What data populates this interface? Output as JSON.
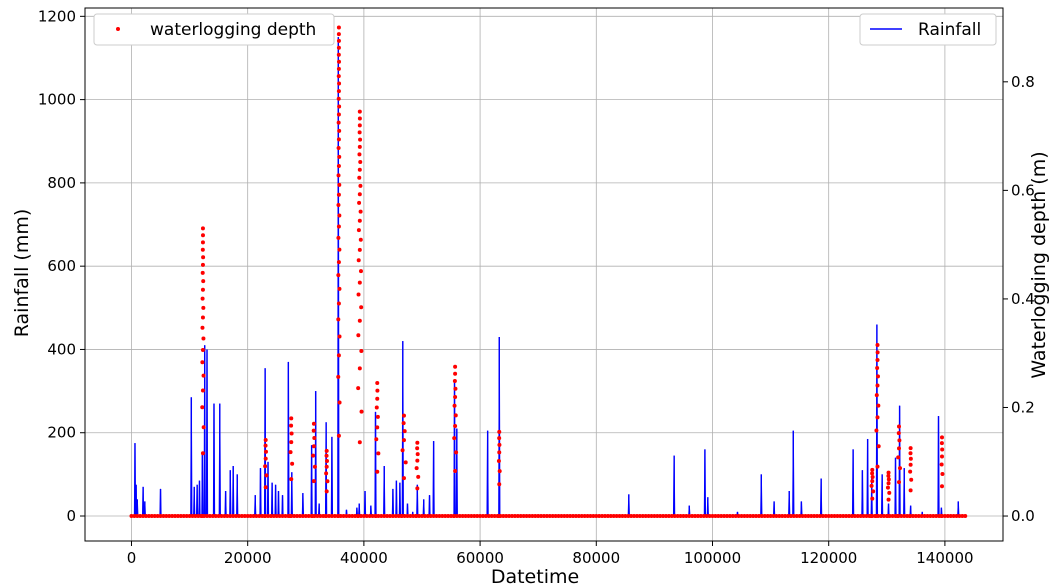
{
  "chart_data": {
    "type": "line",
    "title": "",
    "xlabel": "Datetime",
    "ylabel": "Rainfall (mm)",
    "y2label": "Waterlogging depth (m)",
    "xlim": [
      -8000,
      150000
    ],
    "ylim": [
      -60,
      1220
    ],
    "y2lim": [
      -0.046,
      0.936
    ],
    "x_ticks": [
      0,
      20000,
      40000,
      60000,
      80000,
      100000,
      120000,
      140000
    ],
    "x_tick_labels": [
      "0",
      "20000",
      "40000",
      "60000",
      "80000",
      "100000",
      "120000",
      "140000"
    ],
    "y_ticks": [
      0,
      200,
      400,
      600,
      800,
      1000,
      1200
    ],
    "y_tick_labels": [
      "0",
      "200",
      "400",
      "600",
      "800",
      "1000",
      "1200"
    ],
    "y2_ticks": [
      0.0,
      0.2,
      0.4,
      0.6,
      0.8
    ],
    "y2_tick_labels": [
      "0.0",
      "0.2",
      "0.4",
      "0.6",
      "0.8"
    ],
    "grid": true,
    "series": [
      {
        "name": "Rainfall",
        "kind": "line",
        "axis": "left",
        "color": "#0000ff",
        "legend_position": "top-right",
        "x": [
          0,
          600,
          800,
          1000,
          2000,
          2300,
          5000,
          10300,
          10800,
          11300,
          11700,
          12200,
          12600,
          13000,
          14200,
          15200,
          16200,
          17000,
          17500,
          18200,
          21300,
          22200,
          23000,
          23500,
          24200,
          24800,
          25300,
          26000,
          27000,
          27600,
          29500,
          31000,
          31700,
          32300,
          33500,
          34500,
          35600,
          37000,
          38800,
          39200,
          40200,
          41200,
          42000,
          43500,
          45000,
          45600,
          46200,
          46700,
          47500,
          48400,
          49200,
          50300,
          51300,
          52000,
          55600,
          56000,
          61300,
          63300,
          85600,
          93400,
          96000,
          98700,
          99200,
          104300,
          108400,
          110600,
          113200,
          113900,
          115300,
          118700,
          124200,
          125800,
          126700,
          127400,
          128300,
          129200,
          130300,
          131500,
          132200,
          133000,
          134100,
          136100,
          138900,
          139400,
          142300
        ],
        "values": [
          0,
          175,
          75,
          40,
          70,
          35,
          65,
          285,
          70,
          75,
          85,
          150,
          410,
          400,
          270,
          270,
          60,
          110,
          120,
          100,
          50,
          115,
          355,
          130,
          80,
          75,
          60,
          50,
          370,
          105,
          55,
          170,
          300,
          30,
          225,
          190,
          1150,
          15,
          20,
          30,
          60,
          25,
          250,
          120,
          65,
          85,
          80,
          420,
          30,
          10,
          75,
          40,
          50,
          180,
          325,
          210,
          205,
          430,
          52,
          145,
          25,
          160,
          45,
          10,
          100,
          35,
          60,
          205,
          35,
          90,
          160,
          110,
          185,
          90,
          460,
          100,
          30,
          140,
          265,
          115,
          25,
          10,
          240,
          20,
          35
        ]
      },
      {
        "name": "waterlogging depth",
        "kind": "scatter",
        "axis": "right",
        "color": "#ff0000",
        "legend_position": "top-left",
        "events": [
          {
            "x": 12300,
            "peak": 0.53,
            "spread": 400
          },
          {
            "x": 23100,
            "peak": 0.14,
            "spread": 500
          },
          {
            "x": 27500,
            "peak": 0.18,
            "spread": 600
          },
          {
            "x": 31400,
            "peak": 0.17,
            "spread": 700
          },
          {
            "x": 33600,
            "peak": 0.12,
            "spread": 500
          },
          {
            "x": 35700,
            "peak": 0.9,
            "spread": 350
          },
          {
            "x": 39300,
            "peak": 0.745,
            "spread": 900
          },
          {
            "x": 42300,
            "peak": 0.245,
            "spread": 700
          },
          {
            "x": 46900,
            "peak": 0.185,
            "spread": 1200
          },
          {
            "x": 49200,
            "peak": 0.135,
            "spread": 600
          },
          {
            "x": 55700,
            "peak": 0.275,
            "spread": 600
          },
          {
            "x": 63300,
            "peak": 0.155,
            "spread": 300
          },
          {
            "x": 127500,
            "peak": 0.085,
            "spread": 600
          },
          {
            "x": 128400,
            "peak": 0.315,
            "spread": 700
          },
          {
            "x": 130300,
            "peak": 0.08,
            "spread": 500
          },
          {
            "x": 132100,
            "peak": 0.165,
            "spread": 700
          },
          {
            "x": 134100,
            "peak": 0.125,
            "spread": 400
          },
          {
            "x": 139500,
            "peak": 0.145,
            "spread": 300
          }
        ],
        "baseline": 0,
        "x_range": [
          0,
          143500
        ]
      }
    ]
  }
}
